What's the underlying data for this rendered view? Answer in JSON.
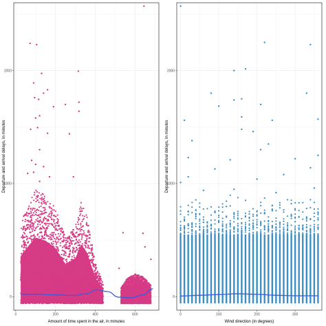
{
  "chart_data": [
    {
      "type": "scatter",
      "xlabel": "Amount of time spent in the air, in minutes",
      "ylabel": "Departure and arrival delays, in minutes",
      "xlim": [
        -10,
        720
      ],
      "ylim": [
        -120,
        2600
      ],
      "x_ticks": [
        0,
        200,
        400,
        600
      ],
      "y_ticks": [
        0,
        1000,
        2000
      ],
      "grid": true,
      "legend": "none",
      "point_color": "#d63b86",
      "smooth_color": "#3b5bdb",
      "dense_regions": [
        {
          "x_range": [
            25,
            440
          ],
          "y_bottom": -60,
          "upper": [
            [
              25,
              650
            ],
            [
              60,
              800
            ],
            [
              100,
              950
            ],
            [
              150,
              900
            ],
            [
              200,
              780
            ],
            [
              250,
              520
            ],
            [
              300,
              620
            ],
            [
              330,
              840
            ],
            [
              360,
              700
            ],
            [
              400,
              300
            ],
            [
              440,
              120
            ]
          ]
        },
        {
          "x_range": [
            530,
            680
          ],
          "y_bottom": -60,
          "upper": [
            [
              530,
              80
            ],
            [
              560,
              160
            ],
            [
              600,
              200
            ],
            [
              640,
              180
            ],
            [
              680,
              100
            ]
          ]
        }
      ],
      "outliers": [
        [
          645,
          2570
        ],
        [
          72,
          2240
        ],
        [
          105,
          2230
        ],
        [
          130,
          1975
        ],
        [
          315,
          1995
        ],
        [
          90,
          1890
        ],
        [
          160,
          1830
        ],
        [
          140,
          1800
        ],
        [
          95,
          1760
        ],
        [
          115,
          1745
        ],
        [
          190,
          1680
        ],
        [
          250,
          1700
        ],
        [
          318,
          1720
        ],
        [
          318,
          1640
        ],
        [
          120,
          1600
        ],
        [
          100,
          1580
        ],
        [
          110,
          1495
        ],
        [
          75,
          1480
        ],
        [
          160,
          1445
        ],
        [
          270,
          1440
        ],
        [
          120,
          1300
        ],
        [
          80,
          1205
        ],
        [
          100,
          1170
        ],
        [
          140,
          1150
        ],
        [
          90,
          1100
        ],
        [
          60,
          1090
        ],
        [
          170,
          1060
        ],
        [
          290,
          1060
        ],
        [
          120,
          1020
        ],
        [
          540,
          565
        ],
        [
          640,
          560
        ],
        [
          650,
          440
        ],
        [
          680,
          330
        ],
        [
          520,
          250
        ]
      ],
      "smooth": {
        "x": [
          25,
          100,
          200,
          300,
          350,
          410,
          460,
          520,
          580,
          640,
          690
        ],
        "y": [
          20,
          22,
          15,
          10,
          25,
          60,
          45,
          -5,
          -10,
          15,
          70
        ]
      }
    },
    {
      "type": "scatter",
      "xlabel": "Wind direction (in degrees)",
      "ylabel": "Departure and arrival delays, in minutes",
      "xlim": [
        -10,
        370
      ],
      "ylim": [
        -120,
        2600
      ],
      "x_ticks": [
        0,
        100,
        200,
        300
      ],
      "y_ticks": [
        0,
        1000,
        2000
      ],
      "grid": true,
      "legend": "none",
      "point_color": "#3b8ec4",
      "smooth_color": "#3b5bdb",
      "column_step": 10,
      "column_range": [
        0,
        360
      ],
      "column_bottom": -60,
      "column_top": 550,
      "column_scatter_top": 900,
      "outliers": [
        [
          0,
          2570
        ],
        [
          220,
          2250
        ],
        [
          340,
          2230
        ],
        [
          140,
          2000
        ],
        [
          170,
          2015
        ],
        [
          330,
          1800
        ],
        [
          80,
          1800
        ],
        [
          140,
          1740
        ],
        [
          160,
          1750
        ],
        [
          210,
          1700
        ],
        [
          100,
          1685
        ],
        [
          160,
          1590
        ],
        [
          360,
          1570
        ],
        [
          10,
          1560
        ],
        [
          240,
          1560
        ],
        [
          160,
          1480
        ],
        [
          190,
          1460
        ],
        [
          30,
          1380
        ],
        [
          230,
          1350
        ],
        [
          210,
          1300
        ],
        [
          360,
          1250
        ],
        [
          20,
          1230
        ],
        [
          130,
          1210
        ],
        [
          300,
          1220
        ],
        [
          340,
          1140
        ],
        [
          90,
          1130
        ],
        [
          270,
          1080
        ],
        [
          20,
          1060
        ],
        [
          200,
          1040
        ],
        [
          0,
          1010
        ],
        [
          350,
          960
        ],
        [
          140,
          950
        ],
        [
          60,
          940
        ],
        [
          250,
          920
        ]
      ],
      "smooth": {
        "x": [
          0,
          50,
          100,
          150,
          200,
          250,
          300,
          360
        ],
        "y": [
          5,
          12,
          18,
          25,
          20,
          12,
          8,
          8
        ]
      }
    }
  ]
}
